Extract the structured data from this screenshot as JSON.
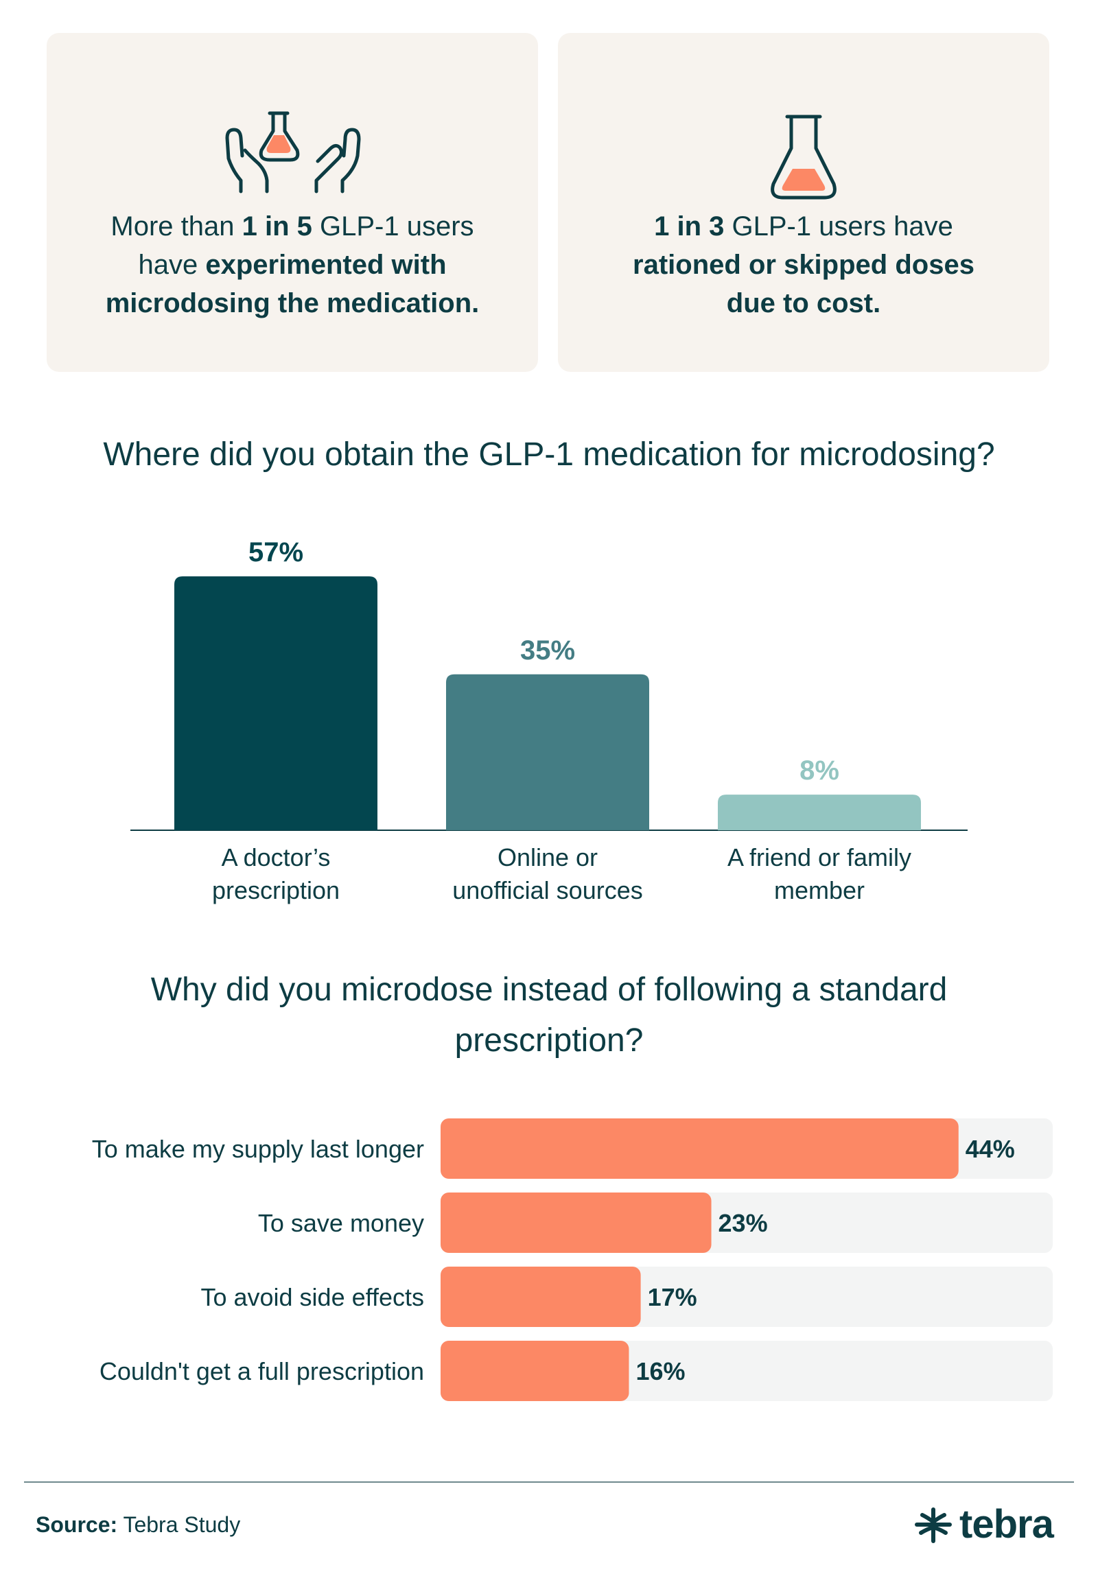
{
  "stat_cards": [
    {
      "icon": "hands-holding-flask-icon",
      "parts": [
        {
          "text": "More than ",
          "bold": false
        },
        {
          "text": "1 in 5",
          "bold": true
        },
        {
          "text": " GLP-1 users\nhave ",
          "bold": false
        },
        {
          "text": "experimented with\nmicrodosing the medication.",
          "bold": true
        }
      ]
    },
    {
      "icon": "flask-icon",
      "parts": [
        {
          "text": "1 in 3",
          "bold": true
        },
        {
          "text": " GLP-1 users have\n",
          "bold": false
        },
        {
          "text": "rationed or skipped doses\ndue to cost.",
          "bold": true
        }
      ]
    }
  ],
  "chart_data": [
    {
      "type": "bar",
      "title": "Where did you obtain the GLP-1 medication for microdosing?",
      "categories": [
        "A doctor’s\nprescription",
        "Online or\nunofficial sources",
        "A friend or family\nmember"
      ],
      "values": [
        57,
        35,
        8
      ],
      "labels": [
        "57%",
        "35%",
        "8%"
      ],
      "colors": [
        "#03464f",
        "#447d84",
        "#93c5c1"
      ],
      "ylim": [
        0,
        57
      ],
      "grid": false
    },
    {
      "type": "bar",
      "orientation": "horizontal",
      "title": "Why did you microdose instead of following a standard prescription?",
      "categories": [
        "To make my supply last longer",
        "To save money",
        "To avoid side effects",
        "Couldn't get a full prescription"
      ],
      "values": [
        44,
        23,
        17,
        16
      ],
      "labels": [
        "44%",
        "23%",
        "17%",
        "16%"
      ],
      "bar_color": "#fc8865",
      "track_color": "#f3f4f4",
      "xlim": [
        0,
        52
      ],
      "grid": false
    }
  ],
  "footer": {
    "source_label": "Source:",
    "source_value": " Tebra Study",
    "brand": "tebra",
    "brand_icon": "tebra-logo-icon"
  },
  "colors": {
    "text": "#0d3c43",
    "card_bg": "#f7f3ee",
    "accent": "#fc8865"
  }
}
